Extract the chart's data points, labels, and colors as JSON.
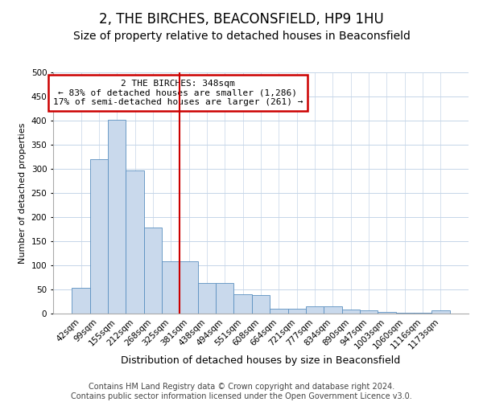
{
  "title": "2, THE BIRCHES, BEACONSFIELD, HP9 1HU",
  "subtitle": "Size of property relative to detached houses in Beaconsfield",
  "xlabel": "Distribution of detached houses by size in Beaconsfield",
  "ylabel": "Number of detached properties",
  "footer_line1": "Contains HM Land Registry data © Crown copyright and database right 2024.",
  "footer_line2": "Contains public sector information licensed under the Open Government Licence v3.0.",
  "categories": [
    "42sqm",
    "99sqm",
    "155sqm",
    "212sqm",
    "268sqm",
    "325sqm",
    "381sqm",
    "438sqm",
    "494sqm",
    "551sqm",
    "608sqm",
    "664sqm",
    "721sqm",
    "777sqm",
    "834sqm",
    "890sqm",
    "947sqm",
    "1003sqm",
    "1060sqm",
    "1116sqm",
    "1173sqm"
  ],
  "values": [
    53,
    320,
    401,
    297,
    178,
    108,
    108,
    63,
    63,
    40,
    38,
    10,
    10,
    15,
    15,
    9,
    6,
    3,
    1,
    1,
    6
  ],
  "bar_color": "#c9d9ec",
  "bar_edge_color": "#5a8fc0",
  "grid_color": "#c5d5e8",
  "vline_color": "#cc0000",
  "vline_x_index": 6,
  "annotation_text_line1": "2 THE BIRCHES: 348sqm",
  "annotation_text_line2": "← 83% of detached houses are smaller (1,286)",
  "annotation_text_line3": "17% of semi-detached houses are larger (261) →",
  "annotation_box_color": "white",
  "annotation_box_edge_color": "#cc0000",
  "ylim": [
    0,
    500
  ],
  "yticks": [
    0,
    50,
    100,
    150,
    200,
    250,
    300,
    350,
    400,
    450,
    500
  ],
  "title_fontsize": 12,
  "subtitle_fontsize": 10,
  "xlabel_fontsize": 9,
  "ylabel_fontsize": 8,
  "tick_fontsize": 7.5,
  "annotation_fontsize": 8,
  "footer_fontsize": 7
}
